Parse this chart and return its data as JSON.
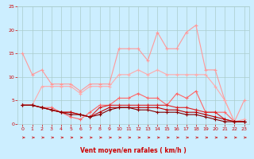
{
  "x": [
    0,
    1,
    2,
    3,
    4,
    5,
    6,
    7,
    8,
    9,
    10,
    11,
    12,
    13,
    14,
    15,
    16,
    17,
    18,
    19,
    20,
    21,
    22,
    23
  ],
  "lines": [
    {
      "color": "#ff9999",
      "lw": 0.8,
      "marker": "+",
      "ms": 3,
      "mew": 0.8,
      "y": [
        15.0,
        10.5,
        11.5,
        8.5,
        8.5,
        8.5,
        7.0,
        8.5,
        8.5,
        8.5,
        16.0,
        16.0,
        16.0,
        13.5,
        19.5,
        16.0,
        16.0,
        19.5,
        21.0,
        11.5,
        11.5,
        5.0,
        0.5,
        5.0
      ]
    },
    {
      "color": "#ffaaaa",
      "lw": 0.8,
      "marker": "+",
      "ms": 3,
      "mew": 0.8,
      "y": [
        4.0,
        4.0,
        8.0,
        8.0,
        8.0,
        8.0,
        6.5,
        8.0,
        8.0,
        8.0,
        10.5,
        10.5,
        11.5,
        10.5,
        11.5,
        10.5,
        10.5,
        10.5,
        10.5,
        10.5,
        8.0,
        5.0,
        0.5,
        1.0
      ]
    },
    {
      "color": "#ff6666",
      "lw": 0.8,
      "marker": "+",
      "ms": 3,
      "mew": 0.8,
      "y": [
        4.0,
        4.0,
        3.5,
        3.5,
        2.5,
        1.5,
        1.0,
        2.5,
        4.0,
        4.0,
        5.5,
        5.5,
        6.5,
        5.5,
        5.5,
        4.0,
        6.5,
        5.5,
        7.0,
        2.5,
        2.5,
        2.5,
        0.5,
        0.5
      ]
    },
    {
      "color": "#dd2222",
      "lw": 0.8,
      "marker": "+",
      "ms": 3,
      "mew": 0.8,
      "y": [
        4.0,
        4.0,
        3.5,
        3.0,
        2.5,
        2.5,
        2.0,
        1.5,
        3.5,
        4.0,
        4.0,
        4.0,
        4.0,
        4.0,
        4.0,
        4.0,
        3.5,
        3.5,
        3.0,
        2.5,
        2.5,
        1.0,
        0.5,
        0.5
      ]
    },
    {
      "color": "#bb0000",
      "lw": 0.8,
      "marker": "+",
      "ms": 3,
      "mew": 0.8,
      "y": [
        4.0,
        4.0,
        3.5,
        3.0,
        2.5,
        2.5,
        2.0,
        1.5,
        2.5,
        3.5,
        3.5,
        3.5,
        3.5,
        3.5,
        3.5,
        3.0,
        3.0,
        2.5,
        2.5,
        2.0,
        1.5,
        1.0,
        0.5,
        0.5
      ]
    },
    {
      "color": "#880000",
      "lw": 0.8,
      "marker": "+",
      "ms": 3,
      "mew": 0.8,
      "y": [
        4.0,
        4.0,
        3.5,
        3.0,
        2.5,
        2.0,
        2.0,
        1.5,
        2.0,
        3.0,
        3.5,
        3.5,
        3.0,
        3.0,
        2.5,
        2.5,
        2.5,
        2.0,
        2.0,
        1.5,
        1.0,
        0.5,
        0.5,
        0.5
      ]
    }
  ],
  "xlabel": "Vent moyen/en rafales ( km/h )",
  "xlim": [
    -0.5,
    23.5
  ],
  "ylim": [
    0,
    25
  ],
  "yticks": [
    0,
    5,
    10,
    15,
    20,
    25
  ],
  "xticks": [
    0,
    1,
    2,
    3,
    4,
    5,
    6,
    7,
    8,
    9,
    10,
    11,
    12,
    13,
    14,
    15,
    16,
    17,
    18,
    19,
    20,
    21,
    22,
    23
  ],
  "bg_color": "#cceeff",
  "grid_color": "#aacccc",
  "xlabel_color": "#cc0000",
  "tick_color": "#cc0000",
  "arrow_color": "#cc0000",
  "figsize": [
    3.2,
    2.0
  ],
  "dpi": 100
}
